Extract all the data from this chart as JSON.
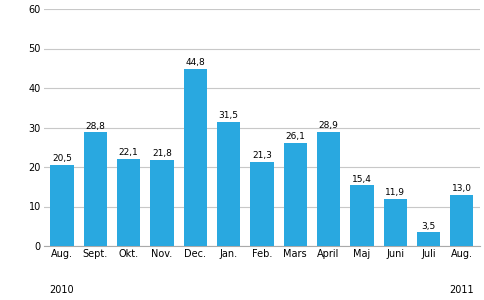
{
  "categories": [
    "Aug.",
    "Sept.",
    "Okt.",
    "Nov.",
    "Dec.",
    "Jan.",
    "Feb.",
    "Mars",
    "April",
    "Maj",
    "Juni",
    "Juli",
    "Aug."
  ],
  "values": [
    20.5,
    28.8,
    22.1,
    21.8,
    44.8,
    31.5,
    21.3,
    26.1,
    28.9,
    15.4,
    11.9,
    3.5,
    13.0
  ],
  "bar_color": "#29a8e0",
  "year_labels": [
    {
      "text": "2010",
      "bar_index": 0
    },
    {
      "text": "2011",
      "bar_index": 12
    }
  ],
  "ylim": [
    0,
    60
  ],
  "yticks": [
    0,
    10,
    20,
    30,
    40,
    50,
    60
  ],
  "background_color": "#ffffff",
  "grid_color": "#c8c8c8",
  "value_label_fontsize": 6.5,
  "tick_fontsize": 7.0,
  "year_fontsize": 7.0,
  "bar_width": 0.7
}
